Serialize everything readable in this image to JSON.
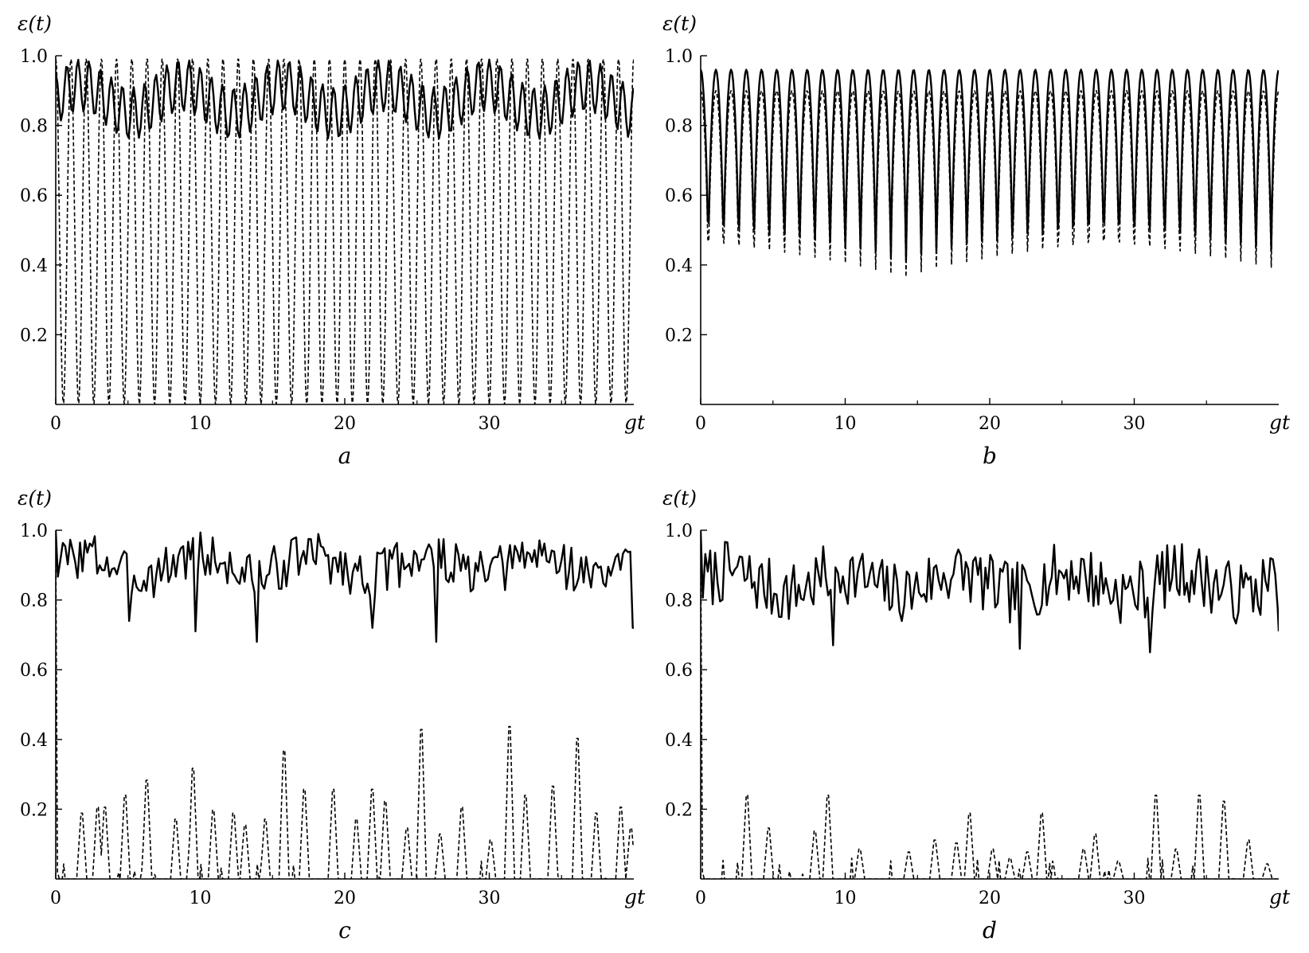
{
  "chart_data": [
    {
      "panel": "a",
      "type": "line",
      "ylabel": "ε(t)",
      "xlabel": "gt",
      "xlim": [
        0,
        40
      ],
      "ylim": [
        0,
        1
      ],
      "xticks": [
        "0",
        "10",
        "20",
        "30"
      ],
      "yticks": [
        "0.2",
        "0.4",
        "0.6",
        "0.8",
        "1.0"
      ],
      "grid": false,
      "series": [
        {
          "style": "solid",
          "model": {
            "kind": "beat",
            "base": 0.875,
            "fast_amp": 0.075,
            "fast_freq": 1.3,
            "beat_amp": 0.04,
            "beat_period": 7
          }
        },
        {
          "style": "dashed",
          "model": {
            "kind": "osc",
            "freq": 0.95,
            "clip_low": 0,
            "clip_high": 0.99
          }
        }
      ]
    },
    {
      "panel": "b",
      "type": "line",
      "ylabel": "ε(t)",
      "xlabel": "gt",
      "xlim": [
        0,
        40
      ],
      "ylim": [
        0,
        1
      ],
      "xticks": [
        "0",
        "10",
        "20",
        "30"
      ],
      "yticks": [
        "0.2",
        "0.4",
        "0.6",
        "0.8",
        "1.0"
      ],
      "grid": false,
      "series": [
        {
          "style": "solid",
          "model": {
            "kind": "pulse",
            "low": 0.41,
            "high": 0.96,
            "freq": 0.95
          }
        },
        {
          "style": "dashed",
          "model": {
            "kind": "pulse",
            "low": 0.36,
            "high": 0.9,
            "freq": 0.95
          }
        }
      ]
    },
    {
      "panel": "c",
      "type": "line",
      "ylabel": "ε(t)",
      "xlabel": "gt",
      "xlim": [
        0,
        40
      ],
      "ylim": [
        0,
        1
      ],
      "xticks": [
        "0",
        "10",
        "20",
        "30"
      ],
      "yticks": [
        "0.2",
        "0.4",
        "0.6",
        "0.8",
        "1.0"
      ],
      "grid": false,
      "series": [
        {
          "style": "solid",
          "model": {
            "kind": "noisy",
            "base": 0.9,
            "amp": 0.07,
            "start": 1.0,
            "end": 0.72,
            "seed": 3,
            "dips": [
              [
                5.1,
                0.74
              ],
              [
                9.6,
                0.71
              ],
              [
                13.9,
                0.68
              ],
              [
                21.9,
                0.72
              ],
              [
                26.4,
                0.68
              ],
              [
                39.9,
                0.72
              ]
            ]
          }
        },
        {
          "style": "dashed",
          "model": {
            "kind": "spikes",
            "seed": 11,
            "start": 0.98,
            "peaks": [
              [
                1.8,
                0.22
              ],
              [
                2.9,
                0.24
              ],
              [
                3.4,
                0.24
              ],
              [
                4.8,
                0.28
              ],
              [
                6.3,
                0.33
              ],
              [
                8.3,
                0.2
              ],
              [
                9.5,
                0.37
              ],
              [
                10.9,
                0.23
              ],
              [
                12.3,
                0.22
              ],
              [
                13.1,
                0.18
              ],
              [
                14.5,
                0.2
              ],
              [
                15.8,
                0.43
              ],
              [
                17.2,
                0.3
              ],
              [
                19.2,
                0.3
              ],
              [
                20.8,
                0.2
              ],
              [
                21.9,
                0.3
              ],
              [
                22.8,
                0.26
              ],
              [
                24.3,
                0.17
              ],
              [
                25.3,
                0.5
              ],
              [
                26.6,
                0.15
              ],
              [
                28.1,
                0.24
              ],
              [
                30.1,
                0.13
              ],
              [
                31.4,
                0.51
              ],
              [
                32.5,
                0.28
              ],
              [
                34.4,
                0.31
              ],
              [
                36.1,
                0.47
              ],
              [
                37.4,
                0.22
              ],
              [
                39.1,
                0.24
              ],
              [
                39.8,
                0.17
              ]
            ]
          }
        }
      ]
    },
    {
      "panel": "d",
      "type": "line",
      "ylabel": "ε(t)",
      "xlabel": "gt",
      "xlim": [
        0,
        40
      ],
      "ylim": [
        0,
        1
      ],
      "xticks": [
        "0",
        "10",
        "20",
        "30"
      ],
      "yticks": [
        "0.2",
        "0.4",
        "0.6",
        "0.8",
        "1.0"
      ],
      "grid": false,
      "series": [
        {
          "style": "solid",
          "model": {
            "kind": "noisy",
            "base": 0.85,
            "amp": 0.09,
            "start": 1.0,
            "end": 0.71,
            "seed": 7,
            "dips": [
              [
                9.2,
                0.67
              ],
              [
                22.1,
                0.66
              ],
              [
                31.1,
                0.65
              ]
            ]
          }
        },
        {
          "style": "dashed",
          "model": {
            "kind": "spikes",
            "seed": 17,
            "start": 0.98,
            "peaks": [
              [
                3.2,
                0.28
              ],
              [
                4.7,
                0.17
              ],
              [
                7.9,
                0.16
              ],
              [
                8.8,
                0.28
              ],
              [
                11.0,
                0.1
              ],
              [
                14.4,
                0.09
              ],
              [
                16.2,
                0.13
              ],
              [
                17.7,
                0.12
              ],
              [
                18.6,
                0.22
              ],
              [
                20.2,
                0.1
              ],
              [
                21.4,
                0.07
              ],
              [
                22.6,
                0.09
              ],
              [
                23.6,
                0.22
              ],
              [
                26.5,
                0.1
              ],
              [
                27.3,
                0.15
              ],
              [
                28.9,
                0.06
              ],
              [
                31.5,
                0.28
              ],
              [
                32.9,
                0.1
              ],
              [
                34.5,
                0.28
              ],
              [
                36.2,
                0.26
              ],
              [
                37.9,
                0.13
              ],
              [
                39.2,
                0.05
              ]
            ]
          }
        }
      ]
    }
  ]
}
